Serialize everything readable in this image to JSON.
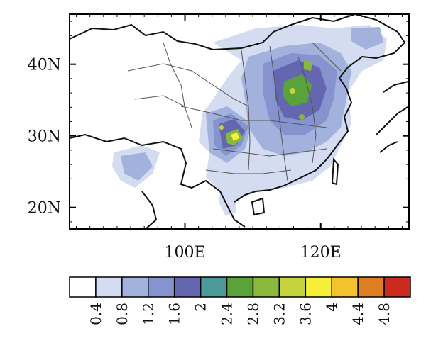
{
  "map": {
    "lat_ticks": [
      {
        "value": 40,
        "label": "40N"
      },
      {
        "value": 30,
        "label": "30N"
      },
      {
        "value": 20,
        "label": "20N"
      }
    ],
    "lon_ticks": [
      {
        "value": 100,
        "label": "100E"
      },
      {
        "value": 120,
        "label": "120E"
      }
    ],
    "lon_range": [
      83,
      133
    ],
    "lat_range": [
      17,
      47
    ]
  },
  "colorbar": {
    "colors": [
      "#ffffff",
      "#d4dcf1",
      "#a3b1dd",
      "#8593ce",
      "#6466b0",
      "#4c9b9a",
      "#5aa33a",
      "#8ab83c",
      "#c4d43f",
      "#f5ef3a",
      "#f3c22c",
      "#de7d22",
      "#cc2a1f"
    ],
    "labels": [
      "0.4",
      "0.8",
      "1.2",
      "1.6",
      "2",
      "2.4",
      "2.8",
      "3.2",
      "3.6",
      "4",
      "4.4",
      "4.8"
    ]
  }
}
